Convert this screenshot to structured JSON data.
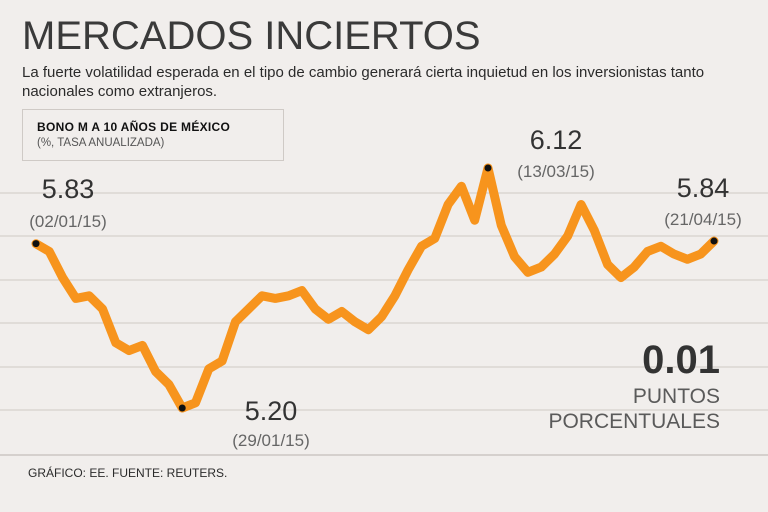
{
  "header": {
    "title": "MERCADOS INCIERTOS",
    "subtitle": "La fuerte volatilidad esperada en el tipo de cambio generará cierta inquietud en los inversionistas tanto nacionales como extranjeros."
  },
  "label_box": {
    "name": "BONO M A 10 AÑOS DE MÉXICO",
    "unit": "(%, TASA ANUALIZADA)"
  },
  "summary": {
    "value": "0.01",
    "unit": "PUNTOS PORCENTUALES"
  },
  "footer": "GRÁFICO: EE. FUENTE: REUTERS.",
  "colors": {
    "line": "#f7941d",
    "background": "#f1eeec",
    "grid": "#cfc9c5",
    "text": "#333333"
  },
  "chart_data": {
    "type": "line",
    "title": "BONO M A 10 AÑOS DE MÉXICO",
    "ylabel": "%, TASA ANUALIZADA",
    "xlabel": "",
    "ylim": [
      5.05,
      6.3
    ],
    "grid": true,
    "series": [
      {
        "name": "Bono M a 10 años",
        "values": [
          5.83,
          5.8,
          5.7,
          5.62,
          5.63,
          5.58,
          5.45,
          5.42,
          5.44,
          5.34,
          5.29,
          5.2,
          5.22,
          5.35,
          5.38,
          5.53,
          5.58,
          5.63,
          5.62,
          5.63,
          5.65,
          5.58,
          5.54,
          5.57,
          5.53,
          5.5,
          5.55,
          5.63,
          5.73,
          5.82,
          5.85,
          5.98,
          6.05,
          5.92,
          6.12,
          5.9,
          5.78,
          5.72,
          5.74,
          5.79,
          5.86,
          5.98,
          5.88,
          5.75,
          5.7,
          5.74,
          5.8,
          5.82,
          5.79,
          5.77,
          5.79,
          5.84
        ]
      }
    ],
    "annotations": [
      {
        "index": 0,
        "value": "5.83",
        "date": "(02/01/15)"
      },
      {
        "index": 11,
        "value": "5.20",
        "date": "(29/01/15)"
      },
      {
        "index": 34,
        "value": "6.12",
        "date": "(13/03/15)"
      },
      {
        "index": 51,
        "value": "5.84",
        "date": "(21/04/15)"
      }
    ]
  }
}
